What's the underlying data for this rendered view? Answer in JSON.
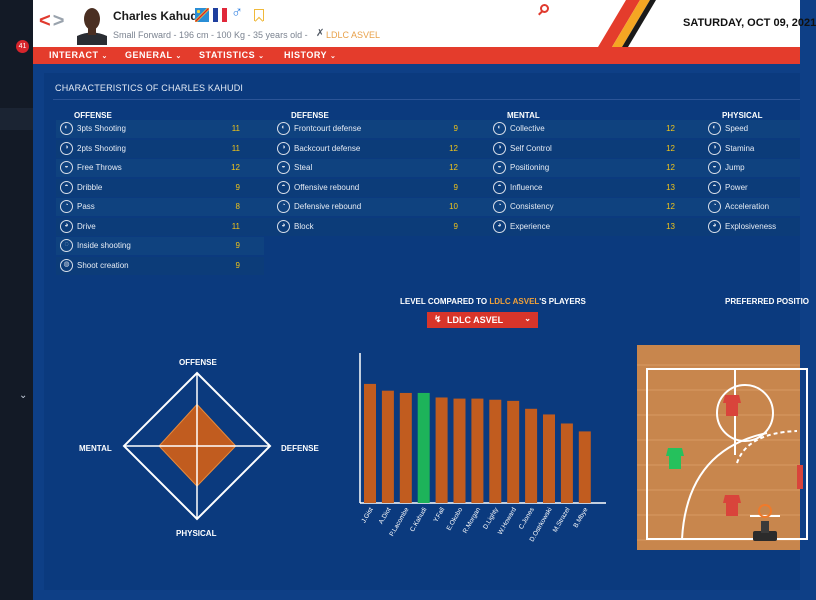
{
  "header": {
    "player_name": "Charles Kahudi",
    "player_info": "Small Forward - 196 cm - 100 Kg - 35 years old -",
    "team": "LDLC ASVEL",
    "date": "SATURDAY, OCT 09, 2021",
    "gender_symbol": "♂",
    "back_icon": "chevron-left-icon",
    "forward_icon": "chevron-right-icon",
    "search_icon": "search-icon"
  },
  "sidebar": {
    "notification_count": "41"
  },
  "menu": {
    "items": [
      {
        "label": "INTERACT"
      },
      {
        "label": "GENERAL"
      },
      {
        "label": "STATISTICS"
      },
      {
        "label": "HISTORY"
      }
    ]
  },
  "characteristics": {
    "title": "CHARACTERISTICS OF CHARLES KAHUDI",
    "columns": [
      {
        "header": "OFFENSE",
        "items": [
          {
            "name": "3pts Shooting",
            "value": "11"
          },
          {
            "name": "2pts Shooting",
            "value": "11"
          },
          {
            "name": "Free Throws",
            "value": "12"
          },
          {
            "name": "Dribble",
            "value": "9"
          },
          {
            "name": "Pass",
            "value": "8"
          },
          {
            "name": "Drive",
            "value": "11"
          },
          {
            "name": "Inside shooting",
            "value": "9"
          },
          {
            "name": "Shoot creation",
            "value": "9"
          }
        ]
      },
      {
        "header": "DEFENSE",
        "items": [
          {
            "name": "Frontcourt defense",
            "value": "9"
          },
          {
            "name": "Backcourt defense",
            "value": "12"
          },
          {
            "name": "Steal",
            "value": "12"
          },
          {
            "name": "Offensive rebound",
            "value": "9"
          },
          {
            "name": "Defensive rebound",
            "value": "10"
          },
          {
            "name": "Block",
            "value": "9"
          }
        ]
      },
      {
        "header": "MENTAL",
        "items": [
          {
            "name": "Collective",
            "value": "12"
          },
          {
            "name": "Self Control",
            "value": "12"
          },
          {
            "name": "Positioning",
            "value": "12"
          },
          {
            "name": "Influence",
            "value": "13"
          },
          {
            "name": "Consistency",
            "value": "12"
          },
          {
            "name": "Experience",
            "value": "13"
          }
        ]
      },
      {
        "header": "PHYSICAL",
        "items": [
          {
            "name": "Speed",
            "value": ""
          },
          {
            "name": "Stamina",
            "value": ""
          },
          {
            "name": "Jump",
            "value": ""
          },
          {
            "name": "Power",
            "value": ""
          },
          {
            "name": "Acceleration",
            "value": ""
          },
          {
            "name": "Explosiveness",
            "value": ""
          }
        ]
      }
    ]
  },
  "radar": {
    "labels": {
      "top": "OFFENSE",
      "right": "DEFENSE",
      "bottom": "PHYSICAL",
      "left": "MENTAL"
    },
    "levels": {
      "offense": 0.57,
      "defense": 0.53,
      "physical": 0.55,
      "mental": 0.52
    }
  },
  "level_compare": {
    "title_prefix": "LEVEL COMPARED TO",
    "title_team": "LDLC ASVEL",
    "title_suffix": "'S PLAYERS",
    "select_value": "LDLC ASVEL"
  },
  "preferred_position": {
    "title": "PREFERRED POSITIO"
  },
  "colors": {
    "accent": "#e43c2c",
    "bar": "#c15c1f",
    "highlight_bar": "#1db35a",
    "gold": "#f0c419"
  },
  "chart_data": {
    "type": "bar",
    "categories": [
      "J.Gist",
      "A.Diot",
      "P.Lacombe",
      "C.Kahudi",
      "Y.Fall",
      "E.Okobo",
      "R.Morgan",
      "D.Lighty",
      "W.Howard",
      "C.Jones",
      "D.Ostrkowski",
      "M.Strazel",
      "B.Mbye"
    ],
    "values": [
      100,
      94,
      92,
      92,
      88,
      87,
      87,
      86,
      85,
      78,
      73,
      65,
      58
    ],
    "highlight": "C.Kahudi",
    "ylim": [
      0,
      100
    ],
    "title": "",
    "xlabel": "",
    "ylabel": ""
  }
}
